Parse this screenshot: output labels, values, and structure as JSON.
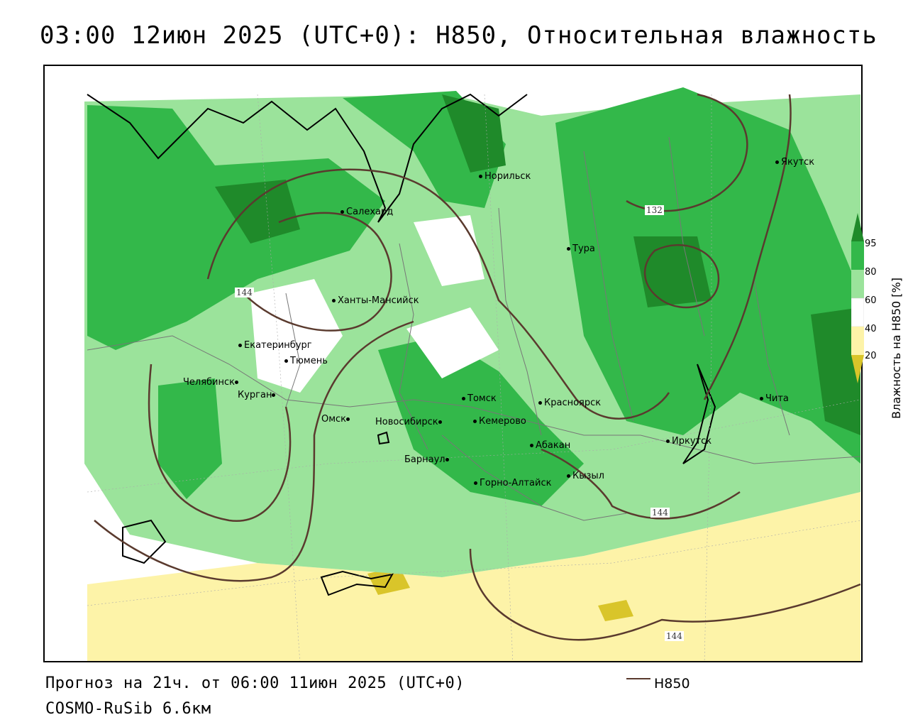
{
  "title": "03:00 12июн 2025 (UTC+0): H850, Относительная влажность",
  "footer": {
    "forecast": "Прогноз на 21ч. от 06:00 11июн 2025 (UTC+0)",
    "model": "COSMO-RuSib 6.6км"
  },
  "legend": {
    "line_label": "H850",
    "line_color": "#5a3a2e"
  },
  "colorbar": {
    "title": "Влажность на H850 [%]",
    "ticks": [
      "95",
      "80",
      "60",
      "40",
      "20"
    ],
    "colors": {
      "very_humid": "#1f8a2a",
      "humid": "#33b84a",
      "moist": "#9be39b",
      "dry": "#fdf3a8",
      "very_dry": "#d9c52a"
    }
  },
  "isohypse_labels": [
    "132",
    "144",
    "144",
    "144"
  ],
  "cities": [
    {
      "name": "Норильск"
    },
    {
      "name": "Якутск"
    },
    {
      "name": "Салехард"
    },
    {
      "name": "Тура"
    },
    {
      "name": "Ханты-Мансийск"
    },
    {
      "name": "Екатеринбург"
    },
    {
      "name": "Тюмень"
    },
    {
      "name": "Челябинск"
    },
    {
      "name": "Курган"
    },
    {
      "name": "Омск"
    },
    {
      "name": "Новосибирск"
    },
    {
      "name": "Томск"
    },
    {
      "name": "Кемерово"
    },
    {
      "name": "Красноярск"
    },
    {
      "name": "Барнаул"
    },
    {
      "name": "Абакан"
    },
    {
      "name": "Горно-Алтайск"
    },
    {
      "name": "Кызыл"
    },
    {
      "name": "Иркутск"
    },
    {
      "name": "Чита"
    }
  ]
}
